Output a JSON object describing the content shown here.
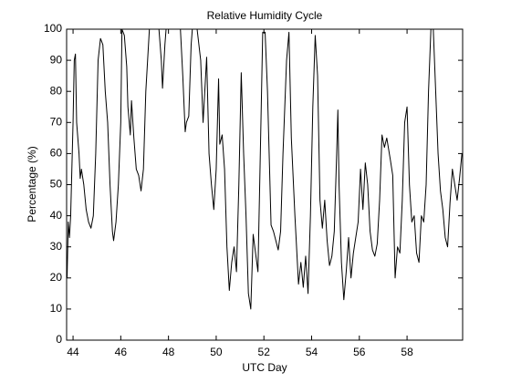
{
  "chart_data": {
    "type": "line",
    "title": "Relative Humidity Cycle",
    "x_label": "UTC Day",
    "y_label": "Percentage (%)",
    "x": [
      43.75,
      43.8,
      43.85,
      43.9,
      44.0,
      44.05,
      44.1,
      44.15,
      44.25,
      44.3,
      44.35,
      44.45,
      44.55,
      44.65,
      44.75,
      44.85,
      44.95,
      45.05,
      45.15,
      45.25,
      45.35,
      45.45,
      45.55,
      45.65,
      45.7,
      45.8,
      45.9,
      46.0,
      46.05,
      46.15,
      46.25,
      46.3,
      46.4,
      46.45,
      46.55,
      46.65,
      46.75,
      46.85,
      46.95,
      47.05,
      47.2,
      47.4,
      47.6,
      47.7,
      47.75,
      47.85,
      47.9,
      48.2,
      48.5,
      48.6,
      48.7,
      48.75,
      48.85,
      48.95,
      49.0,
      49.2,
      49.35,
      49.45,
      49.6,
      49.7,
      49.8,
      49.9,
      50.0,
      50.1,
      50.15,
      50.25,
      50.35,
      50.45,
      50.55,
      50.65,
      50.75,
      50.85,
      50.95,
      51.05,
      51.15,
      51.25,
      51.35,
      51.45,
      51.55,
      51.65,
      51.75,
      51.85,
      51.95,
      52.05,
      52.15,
      52.3,
      52.4,
      52.5,
      52.6,
      52.7,
      52.8,
      52.95,
      53.05,
      53.15,
      53.3,
      53.45,
      53.55,
      53.65,
      53.75,
      53.85,
      53.95,
      54.05,
      54.15,
      54.25,
      54.35,
      54.45,
      54.55,
      54.65,
      54.75,
      54.85,
      54.95,
      55.05,
      55.1,
      55.15,
      55.25,
      55.35,
      55.45,
      55.55,
      55.65,
      55.75,
      55.85,
      55.95,
      56.05,
      56.15,
      56.25,
      56.35,
      56.45,
      56.55,
      56.65,
      56.75,
      56.85,
      56.95,
      57.05,
      57.15,
      57.3,
      57.4,
      57.5,
      57.6,
      57.7,
      57.8,
      57.9,
      58.0,
      58.1,
      58.2,
      58.3,
      58.4,
      58.5,
      58.6,
      58.7,
      58.8,
      58.9,
      59.0,
      59.1,
      59.2,
      59.3,
      59.4,
      59.5,
      59.6,
      59.7,
      59.8,
      59.9,
      60.0,
      60.1,
      60.2,
      60.3
    ],
    "series": [
      {
        "name": "Relative Humidity",
        "color": "#000000",
        "values": [
          20,
          38,
          33,
          40,
          70,
          90,
          92,
          70,
          60,
          52,
          55,
          50,
          42,
          38,
          36,
          40,
          60,
          90,
          97,
          95,
          80,
          70,
          50,
          35,
          32,
          38,
          50,
          70,
          100,
          98,
          88,
          75,
          66,
          77,
          65,
          55,
          53,
          48,
          55,
          80,
          100,
          100,
          100,
          90,
          81,
          95,
          100,
          100,
          100,
          85,
          67,
          70,
          72,
          95,
          100,
          100,
          90,
          70,
          91,
          60,
          50,
          42,
          55,
          84,
          63,
          66,
          55,
          30,
          16,
          25,
          30,
          22,
          50,
          86,
          60,
          40,
          15,
          10,
          34,
          28,
          22,
          60,
          99,
          99,
          80,
          37,
          35,
          32,
          29,
          35,
          60,
          90,
          99,
          65,
          40,
          18,
          25,
          17,
          27,
          15,
          40,
          75,
          98,
          85,
          45,
          36,
          45,
          32,
          24,
          27,
          35,
          60,
          74,
          50,
          25,
          13,
          22,
          33,
          20,
          28,
          33,
          38,
          55,
          42,
          57,
          50,
          35,
          29,
          27,
          31,
          45,
          66,
          62,
          65,
          58,
          53,
          20,
          30,
          28,
          45,
          70,
          75,
          50,
          38,
          40,
          28,
          25,
          40,
          38,
          50,
          80,
          100,
          100,
          80,
          60,
          48,
          42,
          33,
          30,
          44,
          55,
          50,
          45,
          52,
          60
        ]
      }
    ],
    "xlim": [
      43.73,
      60.33
    ],
    "xticks": [
      44,
      46,
      48,
      50,
      52,
      54,
      56,
      58
    ],
    "ylim": [
      0,
      100
    ],
    "yticks": [
      0,
      10,
      20,
      30,
      40,
      50,
      60,
      70,
      80,
      90,
      100
    ],
    "grid": false
  }
}
